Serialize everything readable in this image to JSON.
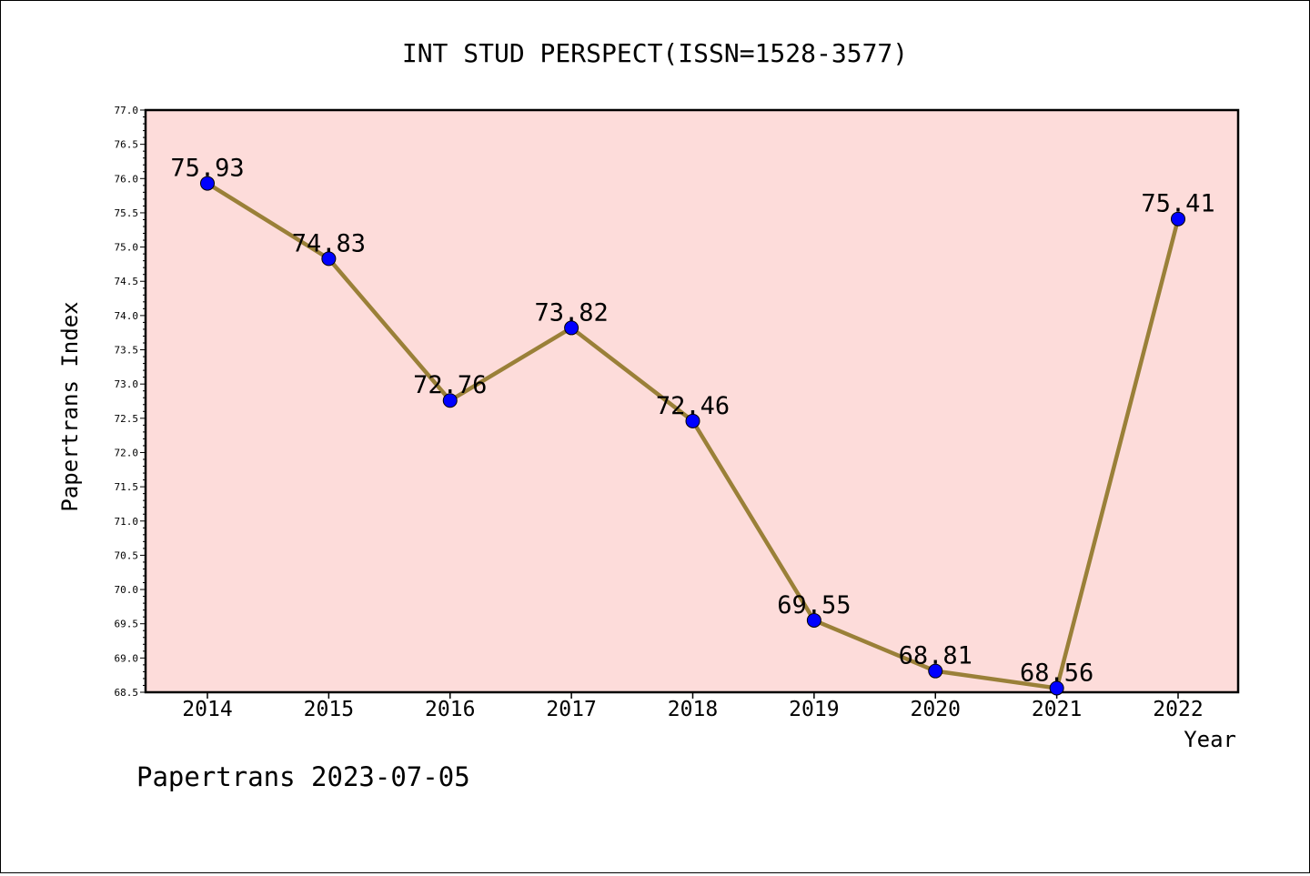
{
  "chart_data": {
    "type": "line",
    "title": "INT STUD PERSPECT(ISSN=1528-3577)",
    "xlabel": "Year",
    "ylabel": "Papertrans Index",
    "footer": "Papertrans 2023-07-05",
    "categories": [
      "2014",
      "2015",
      "2016",
      "2017",
      "2018",
      "2019",
      "2020",
      "2021",
      "2022"
    ],
    "values": [
      75.93,
      74.83,
      72.76,
      73.82,
      72.46,
      69.55,
      68.81,
      68.56,
      75.41
    ],
    "data_labels": [
      "75.93",
      "74.83",
      "72.76",
      "73.82",
      "72.46",
      "69.55",
      "68.81",
      "68.56",
      "75.41"
    ],
    "ylim": [
      68.5,
      77.0
    ],
    "yticks": [
      "68.5",
      "69.0",
      "69.5",
      "70.0",
      "70.5",
      "71.0",
      "71.5",
      "72.0",
      "72.5",
      "73.0",
      "73.5",
      "74.0",
      "74.5",
      "75.0",
      "75.5",
      "76.0",
      "76.5",
      "77.0"
    ],
    "grid": false,
    "colors": {
      "plot_background": "#fddcda",
      "line": "#9a8038",
      "marker": "#0000ff"
    }
  }
}
